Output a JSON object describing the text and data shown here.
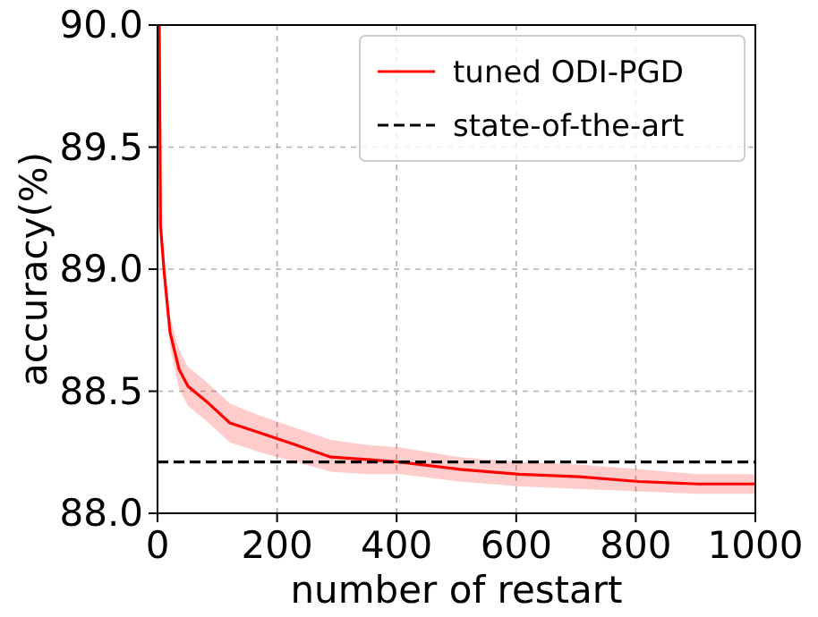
{
  "chart_data": {
    "type": "line",
    "xlabel": "number of restart",
    "ylabel": "accuracy(%)",
    "xlim": [
      0,
      1000
    ],
    "xticks": [
      0,
      200,
      400,
      600,
      800,
      1000
    ],
    "ylim": [
      88.0,
      90.0
    ],
    "yticks": [
      {
        "value": 88.0,
        "label": "88.0"
      },
      {
        "value": 88.5,
        "label": "88.5"
      },
      {
        "value": 89.0,
        "label": "89.0"
      },
      {
        "value": 89.5,
        "label": "89.5"
      },
      {
        "value": 90.0,
        "label": "90.0"
      }
    ],
    "grid": true,
    "legend": "top right",
    "line_style": "solid",
    "series": [
      {
        "name": "tuned ODI-PGD",
        "color": "#ff0000",
        "x": [
          3,
          5,
          11,
          21,
          36,
          51,
          81,
          121,
          171,
          231,
          290,
          350,
          404,
          505,
          605,
          705,
          805,
          904,
          1000
        ],
        "values": [
          90.0,
          89.18,
          88.99,
          88.74,
          88.59,
          88.52,
          88.46,
          88.37,
          88.33,
          88.28,
          88.23,
          88.22,
          88.21,
          88.18,
          88.16,
          88.15,
          88.13,
          88.12,
          88.12
        ],
        "lower": [
          89.97,
          89.14,
          88.94,
          88.68,
          88.51,
          88.44,
          88.38,
          88.29,
          88.25,
          88.21,
          88.17,
          88.16,
          88.16,
          88.13,
          88.11,
          88.1,
          88.09,
          88.08,
          88.08
        ],
        "upper": [
          90.0,
          89.22,
          89.04,
          88.8,
          88.67,
          88.6,
          88.54,
          88.45,
          88.4,
          88.35,
          88.3,
          88.28,
          88.27,
          88.23,
          88.21,
          88.2,
          88.18,
          88.16,
          88.16
        ]
      }
    ],
    "ref_lines": [
      {
        "axis": "y",
        "value": 88.21,
        "label": "state-of-the-art",
        "color": "#000000",
        "line_style": "dashed"
      }
    ]
  }
}
